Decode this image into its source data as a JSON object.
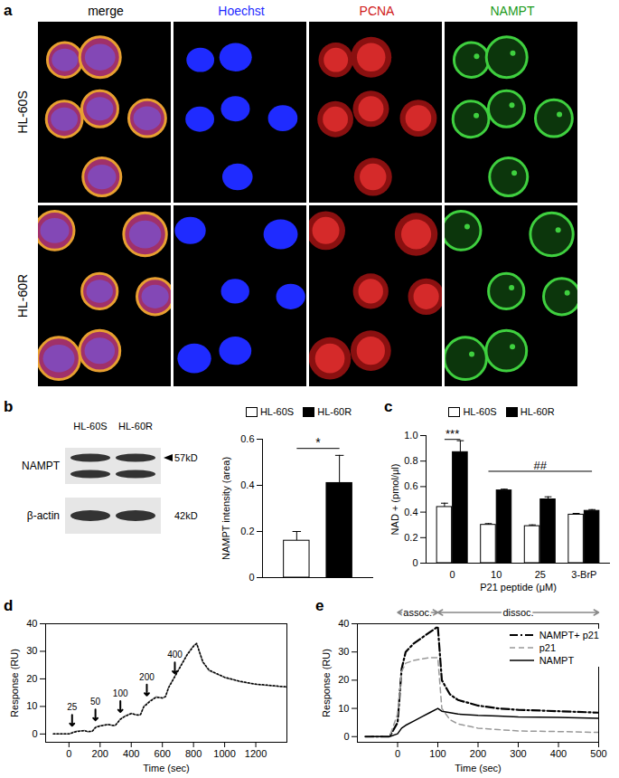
{
  "micrograph": {
    "panel": "a",
    "columns": [
      "merge",
      "Hoechst",
      "PCNA",
      "NAMPT"
    ],
    "column_colors": [
      "#000000",
      "#1f2bff",
      "#d01818",
      "#1a9a1a"
    ],
    "rows": [
      "HL-60S",
      "HL-60R"
    ]
  },
  "blot": {
    "lanes": [
      "HL-60S",
      "HL-60R"
    ],
    "bands": [
      {
        "label": "NAMPT",
        "size": "57kD"
      },
      {
        "label": "β-actin",
        "size": "42kD"
      }
    ]
  },
  "chart_data": [
    {
      "title": "b",
      "type": "bar",
      "categories": [
        "HL-60S",
        "HL-60R"
      ],
      "values": [
        0.16,
        0.41
      ],
      "errors": [
        0.04,
        0.12
      ],
      "colors": [
        "#ffffff",
        "#000000"
      ],
      "legend": "top",
      "tick_labels": "y",
      "y_label": "NAMPT intensity (area)",
      "ylim": [
        0,
        0.6
      ],
      "yticks": [
        0,
        0.2,
        0.4,
        0.6
      ],
      "annotations": [
        {
          "text": "*",
          "from": "HL-60S",
          "to": "HL-60R",
          "y": 0.56
        }
      ]
    },
    {
      "title": "c",
      "type": "bar",
      "categories": [
        "0",
        "10",
        "25",
        "3-BrP"
      ],
      "series": [
        {
          "name": "HL-60S",
          "color": "#ffffff",
          "values": [
            0.44,
            0.3,
            0.29,
            0.38
          ],
          "errors": [
            0.03,
            0.01,
            0.01,
            0.01
          ]
        },
        {
          "name": "HL-60R",
          "color": "#000000",
          "values": [
            0.87,
            0.57,
            0.5,
            0.41
          ],
          "errors": [
            0.09,
            0.01,
            0.02,
            0.01
          ]
        }
      ],
      "legend": "top",
      "x_label": "P21 peptide (μM)",
      "y_label": "NAD + (pmol/μl)",
      "ylim": [
        0,
        1
      ],
      "yticks": [
        0,
        0.2,
        0.4,
        0.6,
        0.8,
        {
          "value": 1,
          "label": "1.0"
        }
      ],
      "annotations": [
        {
          "text": "***",
          "from": "0",
          "to": "0",
          "y": 0.97
        },
        {
          "text": "##",
          "from": "10",
          "to": "3-BrP",
          "y": 0.72
        }
      ]
    },
    {
      "title": "d",
      "type": "line",
      "x": [
        -100,
        0,
        20,
        50,
        100,
        120,
        150,
        170,
        200,
        250,
        290,
        300,
        330,
        360,
        400,
        440,
        460,
        480,
        520,
        560,
        600,
        620,
        640,
        680,
        720,
        760,
        800,
        820,
        860,
        900,
        1000,
        1100,
        1200,
        1300,
        1400
      ],
      "series": [
        {
          "color": "#888888",
          "line_style": "solid",
          "values": [
            0,
            0,
            0.5,
            1,
            1.3,
            0.8,
            1,
            2.5,
            3,
            3.5,
            3,
            3.2,
            5.5,
            6.5,
            7.5,
            6.8,
            7,
            10,
            12,
            13.5,
            13,
            13.5,
            17,
            21,
            25,
            29,
            32,
            33,
            26,
            23,
            20.5,
            19,
            18,
            17.5,
            17
          ]
        },
        {
          "color": "#000000",
          "line_style": "dotted",
          "values": [
            0,
            0,
            0.4,
            0.9,
            1.2,
            0.9,
            1,
            2.3,
            2.9,
            3.4,
            3.1,
            3.3,
            5.3,
            6.4,
            7.4,
            6.9,
            7.1,
            9.8,
            11.8,
            13.3,
            13.1,
            13.6,
            16.8,
            20.8,
            24.8,
            28.8,
            31.8,
            32.8,
            26.2,
            23.2,
            20.6,
            19.1,
            18.1,
            17.6,
            17.1
          ]
        }
      ],
      "x_label": "Time (sec)",
      "y_label": "Response (RU)",
      "xlim": [
        -150,
        1400
      ],
      "xticks": [
        0,
        200,
        400,
        600,
        800,
        1000,
        1200
      ],
      "ylim": [
        -3,
        40
      ],
      "yticks": [
        0,
        10,
        20,
        30,
        40
      ],
      "annotations": [
        {
          "text": "25",
          "x": 20,
          "y": 3
        },
        {
          "text": "50",
          "x": 170,
          "y": 5
        },
        {
          "text": "100",
          "x": 330,
          "y": 8
        },
        {
          "text": "200",
          "x": 500,
          "y": 14
        },
        {
          "text": "400",
          "x": 680,
          "y": 22
        }
      ]
    },
    {
      "title": "e",
      "type": "line",
      "x": [
        -80,
        -20,
        0,
        10,
        20,
        40,
        60,
        80,
        100,
        110,
        130,
        150,
        200,
        250,
        300,
        400,
        500
      ],
      "series": [
        {
          "name": "NAMPT+ p21",
          "color": "#000000",
          "line_style": "dashdot",
          "values": [
            0,
            0,
            5,
            24,
            30,
            33,
            35,
            37,
            39,
            20,
            15,
            13,
            11,
            10,
            9.5,
            9,
            8.5
          ]
        },
        {
          "name": "p21",
          "color": "#999999",
          "line_style": "dashed",
          "values": [
            0,
            0,
            8,
            23,
            26,
            27,
            27.5,
            28,
            28,
            10,
            6,
            4.5,
            3,
            2.5,
            2,
            1.8,
            1.5
          ]
        },
        {
          "name": "NAMPT",
          "color": "#000000",
          "line_style": "solid",
          "values": [
            0,
            0,
            1,
            3,
            4,
            5.5,
            7,
            8.5,
            10,
            9,
            8.5,
            8,
            7.5,
            7.3,
            7,
            6.8,
            6.5
          ]
        }
      ],
      "legend": "top-right",
      "x_label": "Time (sec)",
      "y_label": "Response (RU)",
      "xlim": [
        -100,
        500
      ],
      "xticks": [
        0,
        100,
        200,
        300,
        400,
        500
      ],
      "ylim": [
        -2,
        40
      ],
      "yticks": [
        0,
        10,
        20,
        30,
        40
      ],
      "annotations": [
        {
          "text": "assoc.",
          "x1": 0,
          "x2": 100,
          "y": 44
        },
        {
          "text": "dissoc.",
          "x1": 100,
          "x2": 500,
          "y": 44
        }
      ]
    }
  ]
}
